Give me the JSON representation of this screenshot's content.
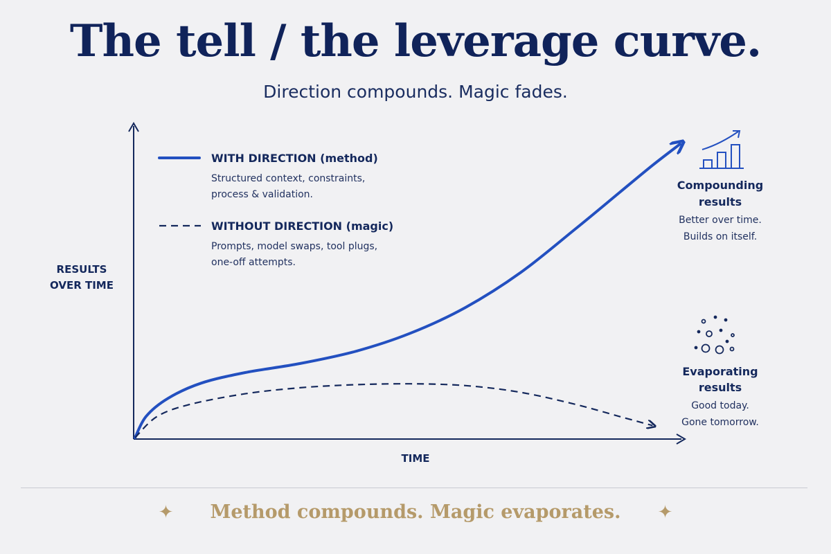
{
  "header": {
    "title": "The tell / the leverage curve.",
    "subtitle": "Direction compounds. Magic fades."
  },
  "chart_data": {
    "type": "line",
    "xlabel": "TIME",
    "ylabel": [
      "RESULTS",
      "OVER TIME"
    ],
    "series": [
      {
        "name": "WITH DIRECTION (method)",
        "description": [
          "Structured context, constraints,",
          "process & validation."
        ],
        "style": "solid",
        "color": "#2350c0",
        "x": [
          0,
          0.02,
          0.06,
          0.12,
          0.2,
          0.3,
          0.4,
          0.5,
          0.6,
          0.7,
          0.8,
          0.88,
          0.94,
          0.99
        ],
        "y": [
          0,
          0.07,
          0.13,
          0.18,
          0.215,
          0.245,
          0.285,
          0.345,
          0.43,
          0.545,
          0.69,
          0.81,
          0.9,
          0.97
        ]
      },
      {
        "name": "WITHOUT DIRECTION (magic)",
        "description": [
          "Prompts, model swaps, tool plugs,",
          "one-off attempts."
        ],
        "style": "dashed",
        "color": "#14285c",
        "x": [
          0,
          0.04,
          0.1,
          0.2,
          0.3,
          0.4,
          0.5,
          0.6,
          0.7,
          0.8,
          0.88,
          0.94
        ],
        "y": [
          0,
          0.07,
          0.11,
          0.145,
          0.165,
          0.175,
          0.178,
          0.172,
          0.15,
          0.11,
          0.07,
          0.04
        ]
      }
    ],
    "annotations": [
      {
        "icon": "rising-bar-chart-icon",
        "title": [
          "Compounding",
          "results"
        ],
        "text": [
          "Better over time.",
          "Builds on itself."
        ]
      },
      {
        "icon": "evaporating-bubbles-icon",
        "title": [
          "Evaporating",
          "results"
        ],
        "text": [
          "Good today.",
          "Gone tomorrow."
        ]
      }
    ],
    "colors": {
      "method": "#2350c0",
      "magic": "#14285c",
      "axis": "#14285c"
    }
  },
  "footer": {
    "tagline": "Method compounds. Magic evaporates.",
    "accent_color": "#b59a6a"
  }
}
